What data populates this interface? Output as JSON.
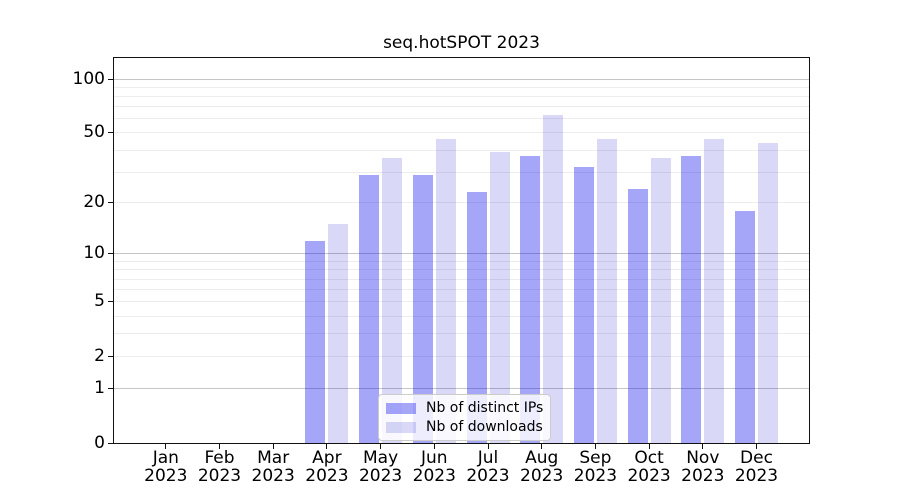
{
  "chart_data": {
    "type": "bar",
    "title": "seq.hotSPOT 2023",
    "xlabel": "",
    "ylabel": "",
    "categories": [
      {
        "month": "Jan",
        "year": "2023"
      },
      {
        "month": "Feb",
        "year": "2023"
      },
      {
        "month": "Mar",
        "year": "2023"
      },
      {
        "month": "Apr",
        "year": "2023"
      },
      {
        "month": "May",
        "year": "2023"
      },
      {
        "month": "Jun",
        "year": "2023"
      },
      {
        "month": "Jul",
        "year": "2023"
      },
      {
        "month": "Aug",
        "year": "2023"
      },
      {
        "month": "Sep",
        "year": "2023"
      },
      {
        "month": "Oct",
        "year": "2023"
      },
      {
        "month": "Nov",
        "year": "2023"
      },
      {
        "month": "Dec",
        "year": "2023"
      }
    ],
    "series": [
      {
        "name": "Nb of distinct IPs",
        "fill": "rgba(0,0,235,0.35)",
        "color_hex": "#a6a6f8",
        "values": [
          0,
          0,
          0,
          12,
          29,
          29,
          23,
          37,
          32,
          24,
          37,
          18
        ]
      },
      {
        "name": "Nb of downloads",
        "fill": "rgba(0,0,200,0.15)",
        "color_hex": "#d9d9f7",
        "values": [
          0,
          0,
          0,
          15,
          36,
          46,
          39,
          63,
          46,
          36,
          46,
          44
        ]
      }
    ],
    "y_scale": "pseudo-log: position ~ log10(value+1)",
    "y_ticks": [
      0,
      1,
      2,
      5,
      10,
      20,
      50,
      100
    ],
    "y_major_grid": [
      1,
      10,
      100
    ],
    "y_minor_grid": [
      2,
      3,
      4,
      5,
      6,
      7,
      8,
      9,
      20,
      30,
      40,
      50,
      60,
      70,
      80,
      90
    ],
    "ylim": [
      0,
      132
    ],
    "grid": true,
    "legend_position": "lower center (inside plot)"
  }
}
